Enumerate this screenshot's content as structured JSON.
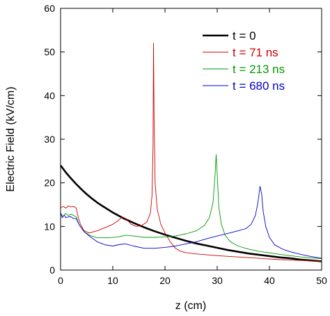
{
  "chart_data": {
    "type": "line",
    "xlabel": "z (cm)",
    "ylabel": "Electric Field (kV/cm)",
    "xlim": [
      0,
      50
    ],
    "ylim": [
      0,
      60
    ],
    "x_ticks": [
      0,
      10,
      20,
      30,
      40,
      50
    ],
    "y_ticks": [
      0,
      10,
      20,
      30,
      40,
      50,
      60
    ],
    "x_tick_labels": [
      "0",
      "10",
      "20",
      "30",
      "40",
      "50"
    ],
    "y_tick_labels": [
      "0",
      "10",
      "20",
      "30",
      "40",
      "50",
      "60"
    ],
    "grid": false,
    "legend_position": "top-right",
    "series": [
      {
        "name": "t = 0",
        "color": "#000000",
        "points": [
          [
            0,
            24
          ],
          [
            1,
            22.4
          ],
          [
            2,
            21.0
          ],
          [
            3,
            19.7
          ],
          [
            4,
            18.5
          ],
          [
            5,
            17.4
          ],
          [
            6,
            16.4
          ],
          [
            7,
            15.5
          ],
          [
            8,
            14.7
          ],
          [
            10,
            13.2
          ],
          [
            12,
            11.9
          ],
          [
            14,
            10.8
          ],
          [
            16,
            9.8
          ],
          [
            18,
            8.9
          ],
          [
            20,
            8.1
          ],
          [
            22,
            7.4
          ],
          [
            24,
            6.7
          ],
          [
            26,
            6.1
          ],
          [
            28,
            5.6
          ],
          [
            30,
            5.1
          ],
          [
            32,
            4.6
          ],
          [
            34,
            4.2
          ],
          [
            36,
            3.8
          ],
          [
            38,
            3.5
          ],
          [
            40,
            3.2
          ],
          [
            42,
            2.9
          ],
          [
            44,
            2.7
          ],
          [
            46,
            2.4
          ],
          [
            48,
            2.2
          ],
          [
            50,
            2.0
          ]
        ]
      },
      {
        "name": "t = 71 ns",
        "color": "#cc0000",
        "points": [
          [
            0,
            14.3
          ],
          [
            0.5,
            14.6
          ],
          [
            1,
            14.2
          ],
          [
            1.5,
            14.7
          ],
          [
            2,
            14.5
          ],
          [
            2.5,
            14.6
          ],
          [
            3,
            14.2
          ],
          [
            3.3,
            12.5
          ],
          [
            3.8,
            10.5
          ],
          [
            4.5,
            9.0
          ],
          [
            5.5,
            8.5
          ],
          [
            7,
            9.0
          ],
          [
            8.5,
            9.7
          ],
          [
            10,
            10.5
          ],
          [
            11,
            11.3
          ],
          [
            11.8,
            12.2
          ],
          [
            12.5,
            11.8
          ],
          [
            13.5,
            10.5
          ],
          [
            14.5,
            10.0
          ],
          [
            15.5,
            10.2
          ],
          [
            16.5,
            11.0
          ],
          [
            17.2,
            13.0
          ],
          [
            17.5,
            17.0
          ],
          [
            17.7,
            28.0
          ],
          [
            17.8,
            52.0
          ],
          [
            17.9,
            35.0
          ],
          [
            18.1,
            20.0
          ],
          [
            18.5,
            14.0
          ],
          [
            19.2,
            10.5
          ],
          [
            20,
            8.5
          ],
          [
            21,
            6.5
          ],
          [
            22,
            5.0
          ],
          [
            23,
            4.3
          ],
          [
            24,
            4.0
          ],
          [
            26,
            3.7
          ],
          [
            30,
            3.3
          ],
          [
            34,
            3.0
          ],
          [
            38,
            2.7
          ],
          [
            42,
            2.4
          ],
          [
            46,
            2.2
          ],
          [
            50,
            2.0
          ]
        ]
      },
      {
        "name": "t = 213 ns",
        "color": "#009900",
        "points": [
          [
            0,
            13.0
          ],
          [
            0.5,
            12.3
          ],
          [
            1,
            13.0
          ],
          [
            1.5,
            12.5
          ],
          [
            2,
            12.8
          ],
          [
            2.5,
            12.5
          ],
          [
            3,
            12.2
          ],
          [
            3.5,
            10.5
          ],
          [
            4.5,
            8.8
          ],
          [
            5.5,
            8.0
          ],
          [
            7,
            7.4
          ],
          [
            9,
            7.4
          ],
          [
            11,
            7.6
          ],
          [
            12.5,
            8.0
          ],
          [
            14,
            7.8
          ],
          [
            16,
            7.5
          ],
          [
            18,
            7.5
          ],
          [
            20,
            7.6
          ],
          [
            22,
            7.8
          ],
          [
            24,
            8.3
          ],
          [
            26,
            9.0
          ],
          [
            27.5,
            10.2
          ],
          [
            28.5,
            12.0
          ],
          [
            29.2,
            15.5
          ],
          [
            29.6,
            22.0
          ],
          [
            29.8,
            26.5
          ],
          [
            30,
            22.0
          ],
          [
            30.3,
            14.5
          ],
          [
            30.8,
            10.5
          ],
          [
            31.5,
            8.0
          ],
          [
            32.5,
            6.5
          ],
          [
            34,
            5.5
          ],
          [
            36,
            4.8
          ],
          [
            38,
            4.3
          ],
          [
            42,
            3.6
          ],
          [
            46,
            3.0
          ],
          [
            50,
            2.6
          ]
        ]
      },
      {
        "name": "t = 680 ns",
        "color": "#0000cc",
        "points": [
          [
            0,
            13.2
          ],
          [
            0.3,
            12.0
          ],
          [
            0.7,
            12.6
          ],
          [
            1,
            12.0
          ],
          [
            1.5,
            12.2
          ],
          [
            2,
            12.2
          ],
          [
            2.5,
            11.8
          ],
          [
            3,
            11.8
          ],
          [
            3.5,
            10.5
          ],
          [
            4.5,
            8.8
          ],
          [
            5.5,
            7.8
          ],
          [
            7,
            6.5
          ],
          [
            8.5,
            5.8
          ],
          [
            10,
            5.5
          ],
          [
            11.5,
            5.9
          ],
          [
            12.5,
            6.0
          ],
          [
            14,
            5.5
          ],
          [
            16,
            5.0
          ],
          [
            18,
            5.0
          ],
          [
            20,
            5.2
          ],
          [
            22,
            5.5
          ],
          [
            24,
            6.0
          ],
          [
            26,
            6.5
          ],
          [
            28,
            7.2
          ],
          [
            30,
            7.8
          ],
          [
            32,
            8.4
          ],
          [
            34,
            9.0
          ],
          [
            35.5,
            9.5
          ],
          [
            36.5,
            10.5
          ],
          [
            37.3,
            12.5
          ],
          [
            37.8,
            15.5
          ],
          [
            38.2,
            19.2
          ],
          [
            38.5,
            17.5
          ],
          [
            38.8,
            13.5
          ],
          [
            39.3,
            10.0
          ],
          [
            40,
            7.5
          ],
          [
            41,
            5.8
          ],
          [
            42.5,
            4.8
          ],
          [
            44,
            4.2
          ],
          [
            46,
            3.6
          ],
          [
            48,
            3.1
          ],
          [
            50,
            2.7
          ]
        ]
      }
    ]
  }
}
